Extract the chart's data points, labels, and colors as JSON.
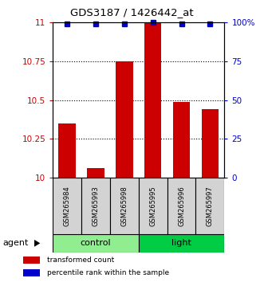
{
  "title": "GDS3187 / 1426442_at",
  "samples": [
    "GSM265984",
    "GSM265993",
    "GSM265998",
    "GSM265995",
    "GSM265996",
    "GSM265997"
  ],
  "bar_values": [
    10.35,
    10.06,
    10.75,
    11.0,
    10.49,
    10.44
  ],
  "percentile_values": [
    99,
    99,
    99,
    100,
    99,
    99
  ],
  "ylim_left": [
    10.0,
    11.0
  ],
  "ylim_right": [
    0,
    100
  ],
  "yticks_left": [
    10.0,
    10.25,
    10.5,
    10.75,
    11.0
  ],
  "ytick_labels_left": [
    "10",
    "10.25",
    "10.5",
    "10.75",
    "11"
  ],
  "yticks_right": [
    0,
    25,
    50,
    75,
    100
  ],
  "ytick_labels_right": [
    "0",
    "25",
    "50",
    "75",
    "100%"
  ],
  "bar_color": "#CC0000",
  "percentile_color": "#0000CC",
  "control_color": "#90EE90",
  "light_color": "#00CC44",
  "legend_items": [
    {
      "label": "transformed count",
      "color": "#CC0000"
    },
    {
      "label": "percentile rank within the sample",
      "color": "#0000CC"
    }
  ],
  "bar_width": 0.6,
  "tick_label_color_left": "#CC0000",
  "tick_label_color_right": "#0000CC",
  "grid_yticks": [
    10.25,
    10.5,
    10.75
  ]
}
